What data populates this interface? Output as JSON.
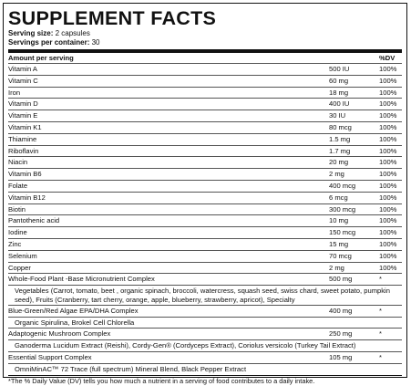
{
  "title": "SUPPLEMENT FACTS",
  "serving_size": {
    "label": "Serving size:",
    "value": "2 capsules"
  },
  "servings": {
    "label": "Servings per container:",
    "value": "30"
  },
  "headers": {
    "amount": "Amount per serving",
    "dv": "%DV"
  },
  "vitamins": [
    {
      "name": "Vitamin A",
      "amount": "500 IU",
      "dv": "100%"
    },
    {
      "name": "Vitamin C",
      "amount": "60 mg",
      "dv": "100%"
    },
    {
      "name": "Iron",
      "amount": "18 mg",
      "dv": "100%"
    },
    {
      "name": "Vitamin D",
      "amount": "400 IU",
      "dv": "100%"
    },
    {
      "name": "Vitamin E",
      "amount": "30 IU",
      "dv": "100%"
    },
    {
      "name": "Vitamin K1",
      "amount": "80 mcg",
      "dv": "100%"
    },
    {
      "name": "Thiamine",
      "amount": "1.5 mg",
      "dv": "100%"
    },
    {
      "name": "Riboflavin",
      "amount": "1.7 mg",
      "dv": "100%"
    },
    {
      "name": "Niacin",
      "amount": "20 mg",
      "dv": "100%"
    },
    {
      "name": "Vitamin B6",
      "amount": "2 mg",
      "dv": "100%"
    },
    {
      "name": "Folate",
      "amount": "400 mcg",
      "dv": "100%"
    },
    {
      "name": "Vitamin B12",
      "amount": "6 mcg",
      "dv": "100%"
    },
    {
      "name": "Biotin",
      "amount": "300 mcg",
      "dv": "100%"
    },
    {
      "name": "Pantothenic acid",
      "amount": "10 mg",
      "dv": "100%"
    },
    {
      "name": "Iodine",
      "amount": "150 mcg",
      "dv": "100%"
    },
    {
      "name": "Zinc",
      "amount": "15 mg",
      "dv": "100%"
    },
    {
      "name": "Selenium",
      "amount": "70 mcg",
      "dv": "100%"
    },
    {
      "name": "Copper",
      "amount": "2 mg",
      "dv": "100%"
    }
  ],
  "blends": [
    {
      "name": "Whole-Food Plant -Base Micronutrient Complex",
      "amount": "500 mg",
      "dv": "*",
      "description": "Vegetables (Carrot, tomato, beet , organic spinach, broccoli, watercress, squash seed, swiss chard, sweet potato, pumpkin seed), Fruits (Cranberry, tart cherry, orange, apple, blueberry, strawberry, apricot), Specialty"
    },
    {
      "name": "Blue-Green/Red Algae EPA/DHA Complex",
      "amount": "400 mg",
      "dv": "*",
      "description": "Organic Spirulina, Brokel Cell Chlorella"
    },
    {
      "name": "Adaptogenic Mushroom Complex",
      "amount": "250 mg",
      "dv": "*",
      "description": "Ganoderma Lucidum Extract (Reishi), Cordy-Gen® (Cordyceps Extract), Coriolus versicolo (Turkey Tail Extract)"
    },
    {
      "name": "Essential Support Complex",
      "amount": "105 mg",
      "dv": "*",
      "description": "OmniMinAC™ 72 Trace (full spectrum) Mineral Blend, Black Pepper Extract"
    }
  ],
  "footnote": "*The % Daily Value (DV) tells you how much a nutrient in a serving of food contributes to a daily intake."
}
